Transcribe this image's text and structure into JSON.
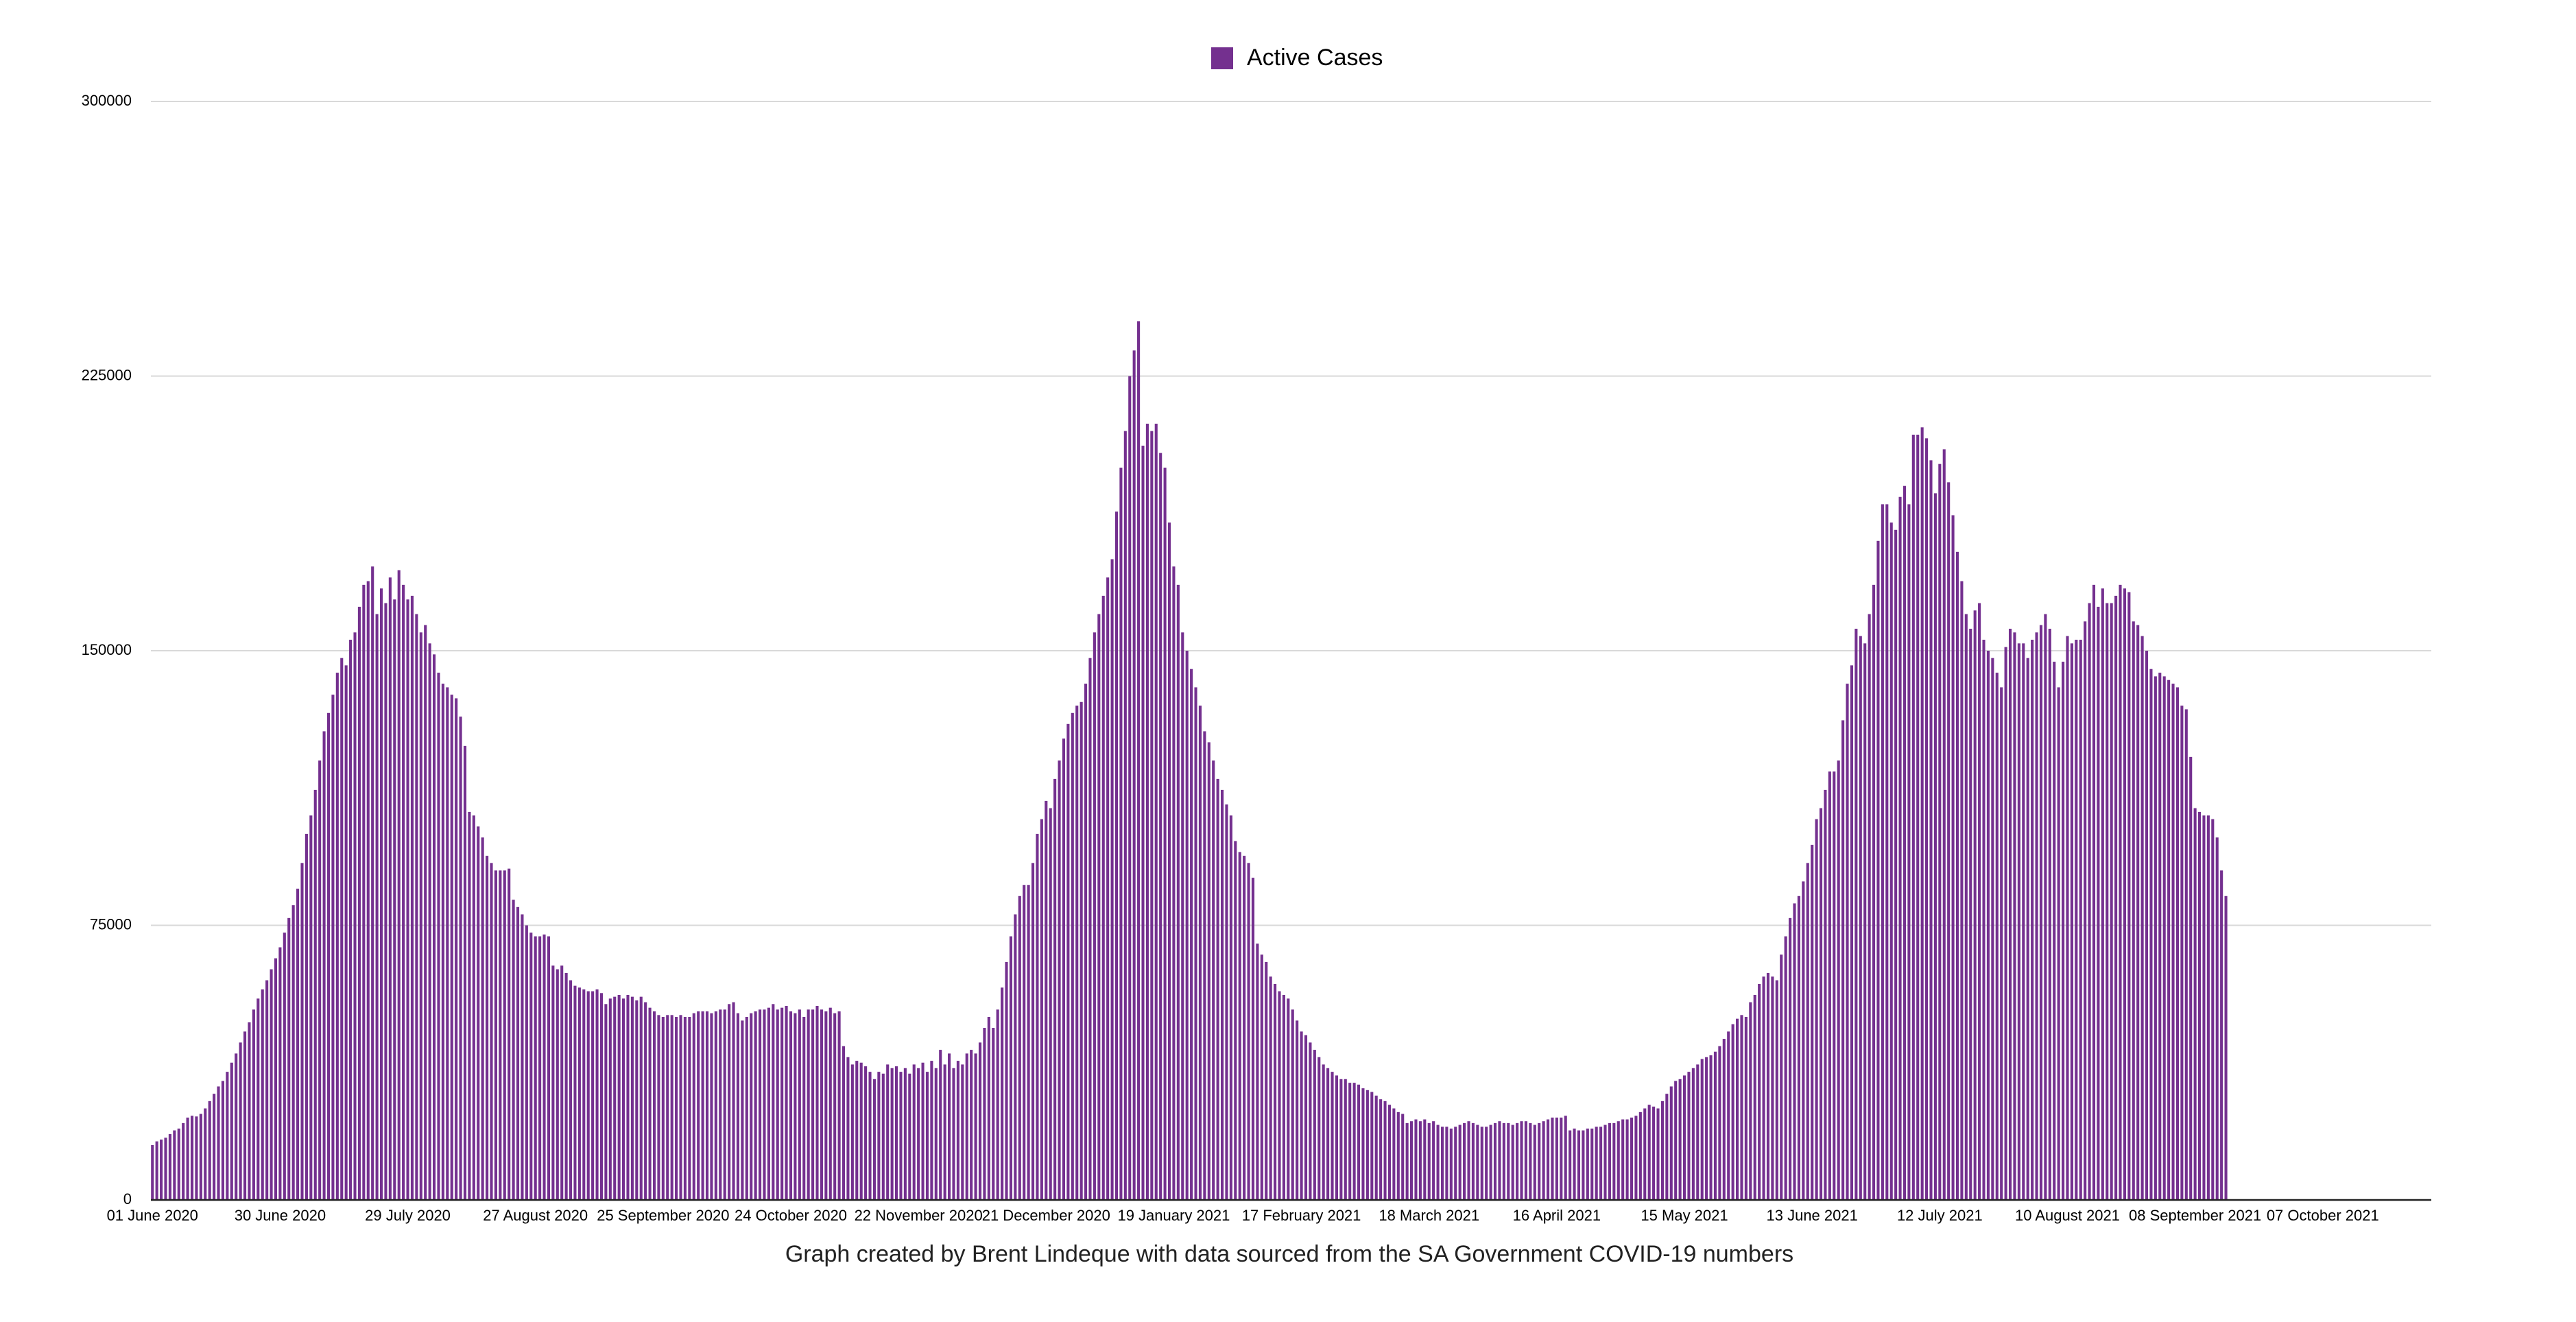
{
  "chart_data": {
    "type": "bar",
    "caption": "Graph created by Brent Lindeque with data sourced from the SA Government COVID-19 numbers",
    "legend": "top",
    "grid": true,
    "ylim": [
      0,
      300000
    ],
    "yticks": [
      0,
      75000,
      150000,
      225000,
      300000
    ],
    "categories": [
      "01 June 2020",
      null,
      null,
      null,
      null,
      null,
      null,
      null,
      null,
      null,
      null,
      null,
      null,
      null,
      null,
      null,
      null,
      null,
      null,
      null,
      null,
      null,
      null,
      null,
      null,
      null,
      null,
      null,
      null,
      "30 June 2020",
      null,
      null,
      null,
      null,
      null,
      null,
      null,
      null,
      null,
      null,
      null,
      null,
      null,
      null,
      null,
      null,
      null,
      null,
      null,
      null,
      null,
      null,
      null,
      null,
      null,
      null,
      null,
      null,
      "29 July 2020",
      null,
      null,
      null,
      null,
      null,
      null,
      null,
      null,
      null,
      null,
      null,
      null,
      null,
      null,
      null,
      null,
      null,
      null,
      null,
      null,
      null,
      null,
      null,
      null,
      null,
      null,
      null,
      null,
      "27 August 2020",
      null,
      null,
      null,
      null,
      null,
      null,
      null,
      null,
      null,
      null,
      null,
      null,
      null,
      null,
      null,
      null,
      null,
      null,
      null,
      null,
      null,
      null,
      null,
      null,
      null,
      null,
      null,
      null,
      "25 September 2020",
      null,
      null,
      null,
      null,
      null,
      null,
      null,
      null,
      null,
      null,
      null,
      null,
      null,
      null,
      null,
      null,
      null,
      null,
      null,
      null,
      null,
      null,
      null,
      null,
      null,
      null,
      null,
      null,
      "24 October 2020",
      null,
      null,
      null,
      null,
      null,
      null,
      null,
      null,
      null,
      null,
      null,
      null,
      null,
      null,
      null,
      null,
      null,
      null,
      null,
      null,
      null,
      null,
      null,
      null,
      null,
      null,
      null,
      null,
      "22 November 2020",
      null,
      null,
      null,
      null,
      null,
      null,
      null,
      null,
      null,
      null,
      null,
      null,
      null,
      null,
      null,
      null,
      null,
      null,
      null,
      null,
      null,
      null,
      null,
      null,
      null,
      null,
      null,
      null,
      "21 December 2020",
      null,
      null,
      null,
      null,
      null,
      null,
      null,
      null,
      null,
      null,
      null,
      null,
      null,
      null,
      null,
      null,
      null,
      null,
      null,
      null,
      null,
      null,
      null,
      null,
      null,
      null,
      null,
      null,
      "19 January 2021",
      null,
      null,
      null,
      null,
      null,
      null,
      null,
      null,
      null,
      null,
      null,
      null,
      null,
      null,
      null,
      null,
      null,
      null,
      null,
      null,
      null,
      null,
      null,
      null,
      null,
      null,
      null,
      null,
      "17 February 2021",
      null,
      null,
      null,
      null,
      null,
      null,
      null,
      null,
      null,
      null,
      null,
      null,
      null,
      null,
      null,
      null,
      null,
      null,
      null,
      null,
      null,
      null,
      null,
      null,
      null,
      null,
      null,
      null,
      "18 March 2021",
      null,
      null,
      null,
      null,
      null,
      null,
      null,
      null,
      null,
      null,
      null,
      null,
      null,
      null,
      null,
      null,
      null,
      null,
      null,
      null,
      null,
      null,
      null,
      null,
      null,
      null,
      null,
      null,
      "16 April 2021",
      null,
      null,
      null,
      null,
      null,
      null,
      null,
      null,
      null,
      null,
      null,
      null,
      null,
      null,
      null,
      null,
      null,
      null,
      null,
      null,
      null,
      null,
      null,
      null,
      null,
      null,
      null,
      null,
      "15 May 2021",
      null,
      null,
      null,
      null,
      null,
      null,
      null,
      null,
      null,
      null,
      null,
      null,
      null,
      null,
      null,
      null,
      null,
      null,
      null,
      null,
      null,
      null,
      null,
      null,
      null,
      null,
      null,
      null,
      "13 June 2021",
      null,
      null,
      null,
      null,
      null,
      null,
      null,
      null,
      null,
      null,
      null,
      null,
      null,
      null,
      null,
      null,
      null,
      null,
      null,
      null,
      null,
      null,
      null,
      null,
      null,
      null,
      null,
      null,
      "12 July 2021",
      null,
      null,
      null,
      null,
      null,
      null,
      null,
      null,
      null,
      null,
      null,
      null,
      null,
      null,
      null,
      null,
      null,
      null,
      null,
      null,
      null,
      null,
      null,
      null,
      null,
      null,
      null,
      null,
      "10 August 2021",
      null,
      null,
      null,
      null,
      null,
      null,
      null,
      null,
      null,
      null,
      null,
      null,
      null,
      null,
      null,
      null,
      null,
      null,
      null,
      null,
      null,
      null,
      null,
      null,
      null,
      null,
      null,
      null,
      "08 September 2021",
      null,
      null,
      null,
      null,
      null,
      null,
      null,
      null,
      null,
      null,
      null,
      null,
      null,
      null,
      null,
      null,
      null,
      null,
      null,
      null,
      null,
      null,
      null,
      null,
      null,
      null,
      null,
      null,
      "07 October 2021",
      null,
      null,
      null,
      null,
      null,
      null,
      null,
      null,
      null,
      null,
      null,
      null,
      null,
      null,
      null,
      null,
      null,
      null,
      null,
      null,
      null,
      null,
      null,
      null
    ],
    "series": [
      {
        "name": "Active Cases",
        "color": "#74308f",
        "values": [
          15000,
          16000,
          16500,
          17000,
          18000,
          19000,
          19500,
          21000,
          22500,
          23000,
          22800,
          23500,
          25000,
          27000,
          29000,
          31000,
          32500,
          35000,
          37500,
          40000,
          43000,
          46000,
          48500,
          52000,
          55000,
          57500,
          60000,
          63000,
          66000,
          69000,
          73000,
          77000,
          80500,
          85000,
          92000,
          100000,
          105000,
          112000,
          120000,
          128000,
          133000,
          138000,
          144000,
          148000,
          146000,
          153000,
          155000,
          162000,
          168000,
          169000,
          173000,
          160000,
          167000,
          163000,
          170000,
          164000,
          172000,
          168000,
          164000,
          165000,
          160000,
          155000,
          157000,
          152000,
          149000,
          144000,
          141000,
          140000,
          138000,
          137000,
          132000,
          124000,
          106000,
          105000,
          102000,
          99000,
          94000,
          92000,
          90000,
          90000,
          90000,
          90500,
          82000,
          80000,
          78000,
          75000,
          73000,
          72000,
          72000,
          72500,
          72000,
          64000,
          63000,
          64000,
          62000,
          60000,
          58500,
          58000,
          57500,
          57000,
          57000,
          57500,
          56500,
          53500,
          55000,
          55500,
          56000,
          55000,
          56000,
          55500,
          54500,
          55500,
          54000,
          52500,
          51500,
          50500,
          50000,
          50500,
          50500,
          50000,
          50500,
          50000,
          50000,
          51000,
          51500,
          51500,
          51500,
          51000,
          51500,
          52000,
          52000,
          53500,
          54000,
          51000,
          49000,
          50000,
          51000,
          51500,
          52000,
          52000,
          52500,
          53500,
          52000,
          52500,
          53000,
          51500,
          51000,
          52000,
          50000,
          52000,
          52000,
          53000,
          52000,
          51500,
          52500,
          51000,
          51500,
          42000,
          39000,
          37000,
          38000,
          37500,
          36500,
          35000,
          33000,
          35000,
          34500,
          37000,
          36000,
          36500,
          35000,
          36000,
          34500,
          37000,
          36000,
          37500,
          35000,
          38000,
          36000,
          41000,
          37000,
          40000,
          36000,
          38000,
          37000,
          40000,
          41000,
          40000,
          43000,
          47000,
          50000,
          47000,
          52000,
          58000,
          65000,
          72000,
          78000,
          83000,
          86000,
          86000,
          92000,
          100000,
          104000,
          109000,
          107000,
          115000,
          120000,
          126000,
          130000,
          133000,
          135000,
          136000,
          141000,
          148000,
          155000,
          160000,
          165000,
          170000,
          175000,
          188000,
          200000,
          210000,
          225000,
          232000,
          240000,
          206000,
          212000,
          210000,
          212000,
          204000,
          200000,
          185000,
          173000,
          168000,
          155000,
          150000,
          145000,
          140000,
          135000,
          128000,
          125000,
          120000,
          115000,
          112000,
          108000,
          105000,
          98000,
          95000,
          94000,
          92000,
          88000,
          70000,
          67000,
          65000,
          61000,
          59000,
          57000,
          56000,
          55000,
          52000,
          49000,
          46000,
          45000,
          43000,
          41000,
          39000,
          37000,
          36000,
          35000,
          34000,
          33000,
          33000,
          32000,
          32000,
          31500,
          30500,
          30000,
          29500,
          28500,
          27500,
          27000,
          26000,
          25000,
          24000,
          23500,
          21000,
          21500,
          22000,
          21500,
          22000,
          21000,
          21500,
          20500,
          20000,
          20000,
          19500,
          20000,
          20500,
          21000,
          21500,
          21000,
          20500,
          20000,
          20000,
          20500,
          21000,
          21500,
          21000,
          21000,
          20500,
          21000,
          21500,
          21500,
          21000,
          20500,
          21000,
          21500,
          22000,
          22500,
          22500,
          22500,
          23000,
          19000,
          19500,
          19000,
          19000,
          19500,
          19500,
          20000,
          20000,
          20500,
          21000,
          21000,
          21500,
          22000,
          22000,
          22500,
          23000,
          24000,
          25000,
          26000,
          25500,
          25000,
          27000,
          29000,
          31000,
          32500,
          33000,
          34000,
          35000,
          36000,
          37000,
          38500,
          39000,
          39500,
          40500,
          42000,
          44000,
          46000,
          48000,
          49500,
          50500,
          50000,
          54000,
          56000,
          59000,
          61000,
          62000,
          61000,
          60000,
          67000,
          72000,
          77000,
          81000,
          83000,
          87000,
          92000,
          97000,
          104000,
          107000,
          112000,
          117000,
          117000,
          120000,
          131000,
          141000,
          146000,
          156000,
          154000,
          152000,
          160000,
          168000,
          180000,
          190000,
          190000,
          185000,
          183000,
          192000,
          195000,
          190000,
          209000,
          209000,
          211000,
          208000,
          202000,
          193000,
          201000,
          205000,
          196000,
          187000,
          177000,
          169000,
          160000,
          156000,
          161000,
          163000,
          153000,
          150000,
          148000,
          144000,
          140000,
          151000,
          156000,
          155000,
          152000,
          152000,
          148000,
          153000,
          155000,
          157000,
          160000,
          156000,
          147000,
          140000,
          147000,
          154000,
          152000,
          153000,
          153000,
          158000,
          163000,
          168000,
          162000,
          167000,
          163000,
          163000,
          165000,
          168000,
          167000,
          166000,
          158000,
          157000,
          154000,
          150000,
          145000,
          143000,
          144000,
          143000,
          142000,
          141000,
          140000,
          135000,
          134000,
          121000,
          107000,
          106000,
          105000,
          105000,
          104000,
          99000,
          90000,
          83000,
          null,
          null,
          null,
          null,
          null,
          null,
          null,
          null,
          null,
          null,
          null,
          null,
          null,
          null,
          null,
          null,
          null,
          null,
          null,
          null,
          null,
          null,
          null,
          null,
          null,
          null,
          null,
          null,
          null,
          null,
          null,
          null,
          null,
          null,
          null,
          null,
          null,
          null,
          null,
          null,
          null,
          null,
          null,
          null,
          null,
          null
        ]
      }
    ]
  }
}
